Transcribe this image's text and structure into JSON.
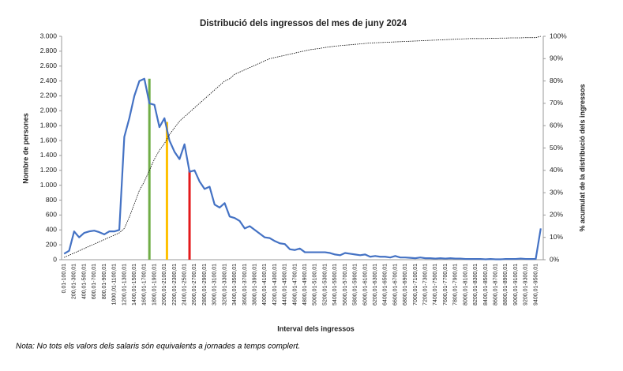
{
  "chart_data": {
    "type": "line",
    "title": "Distribució dels ingressos del mes de juny 2024",
    "x_label": "Interval dels ingressos",
    "y_label": "Nombre de persones",
    "y2_label": "% acumulat de la distribució dels ingressos",
    "note": "Nota: No tots els valors dels salaris són equivalents a jornades a temps complert.",
    "categories": [
      "0,01-100,01",
      null,
      "200,01-300,01",
      null,
      "400,01-500,01",
      null,
      "600,01-700,01",
      null,
      "800,01-900,01",
      null,
      "1000,01-1100,01",
      null,
      "1200,01-1300,01",
      null,
      "1400,01-1500,01",
      null,
      "1600,01-1700,01",
      null,
      "1800,01-1900,01",
      null,
      "2000,01-2100,01",
      null,
      "2200,01-2300,01",
      null,
      "2400,01-2500,01",
      null,
      "2600,01-2700,01",
      null,
      "2800,01-2900,01",
      null,
      "3000,01-3100,01",
      null,
      "3200,01-3300,01",
      null,
      "3400,01-3500,01",
      null,
      "3600,01-3700,01",
      null,
      "3800,01-3900,01",
      null,
      "4000,01-4100,01",
      null,
      "4200,01-4300,01",
      null,
      "4400,01-4500,01",
      null,
      "4600,01-4700,01",
      null,
      "4800,01-4900,01",
      null,
      "5000,01-5100,01",
      null,
      "5200,01-5300,01",
      null,
      "5400,01-5500,01",
      null,
      "5600,01-5700,01",
      null,
      "5800,01-5900,01",
      null,
      "6000,01-6100,01",
      null,
      "6200,01-6300,01",
      null,
      "6400,01-6500,01",
      null,
      "6600,01-6700,01",
      null,
      "6800,01-6900,01",
      null,
      "7000,01-7100,01",
      null,
      "7200,01-7300,01",
      null,
      "7400,01-7500,01",
      null,
      "7600,01-7700,01",
      null,
      "7800,01-7900,01",
      null,
      "8000,01-8100,01",
      null,
      "8200,01-8300,01",
      null,
      "8400,01-8500,01",
      null,
      "8600,01-8700,01",
      null,
      "8800,01-8900,01",
      null,
      "9000,01-9100,01",
      null,
      "9200,01-9300,01",
      null,
      "9400,01-9500,01",
      null
    ],
    "series": [
      {
        "color": "#4472c4",
        "values": [
          80,
          120,
          380,
          300,
          360,
          380,
          390,
          370,
          340,
          380,
          380,
          400,
          1650,
          1900,
          2200,
          2400,
          2430,
          2100,
          2080,
          1780,
          1900,
          1600,
          1450,
          1350,
          1550,
          1180,
          1200,
          1050,
          950,
          980,
          740,
          700,
          760,
          580,
          560,
          520,
          420,
          450,
          400,
          350,
          300,
          290,
          250,
          220,
          210,
          140,
          130,
          150,
          100,
          100,
          100,
          100,
          100,
          90,
          70,
          60,
          90,
          80,
          70,
          60,
          70,
          40,
          50,
          40,
          40,
          30,
          50,
          30,
          30,
          25,
          20,
          30,
          20,
          20,
          15,
          20,
          15,
          20,
          15,
          15,
          10,
          10,
          10,
          10,
          5,
          10,
          5,
          5,
          10,
          10,
          10,
          15,
          10,
          10,
          10,
          420
        ]
      },
      {
        "color": "#000000",
        "axis": "y2",
        "values": [
          1,
          2,
          3,
          4,
          5,
          6,
          7,
          8,
          9,
          10,
          11,
          12,
          14,
          19,
          25,
          31,
          35,
          40,
          45,
          49,
          52,
          56,
          59,
          62,
          64,
          66,
          68,
          70,
          72,
          74,
          76,
          78,
          80,
          81,
          83,
          84,
          85,
          86,
          87,
          88,
          89,
          90,
          90.5,
          91,
          91.5,
          92,
          92.5,
          93,
          93.5,
          94,
          94.3,
          94.6,
          95,
          95.3,
          95.6,
          95.8,
          96,
          96.2,
          96.4,
          96.6,
          96.8,
          97,
          97.1,
          97.2,
          97.3,
          97.4,
          97.5,
          97.6,
          97.7,
          97.8,
          97.9,
          98,
          98.1,
          98.2,
          98.3,
          98.4,
          98.5,
          98.6,
          98.7,
          98.8,
          98.9,
          99,
          99,
          99,
          99,
          99.1,
          99.1,
          99.2,
          99.2,
          99.3,
          99.3,
          99.3,
          99.4,
          99.4,
          99.4,
          100
        ]
      }
    ],
    "reference_lines": [
      {
        "x": 17,
        "value": 2430,
        "color": "#70ad47"
      },
      {
        "x": 20.5,
        "value": 1850,
        "color": "#ffc000"
      },
      {
        "x": 25,
        "value": 1200,
        "color": "#e41a1c"
      }
    ],
    "ylim": [
      0,
      3000
    ],
    "yticks": [
      0,
      200,
      400,
      600,
      800,
      {
        "value": 1000,
        "label": "1.000"
      },
      {
        "value": 1200,
        "label": "1.200"
      },
      {
        "value": 1400,
        "label": "1.400"
      },
      {
        "value": 1600,
        "label": "1.600"
      },
      {
        "value": 1800,
        "label": "1.800"
      },
      {
        "value": 2000,
        "label": "2.000"
      },
      {
        "value": 2200,
        "label": "2.200"
      },
      {
        "value": 2400,
        "label": "2.400"
      },
      {
        "value": 2600,
        "label": "2.600"
      },
      {
        "value": 2800,
        "label": "2.800"
      },
      {
        "value": 3000,
        "label": "3.000"
      }
    ],
    "y2lim": [
      0,
      100
    ],
    "y2ticks": [
      {
        "value": 0,
        "label": "0%"
      },
      {
        "value": 10,
        "label": "10%"
      },
      {
        "value": 20,
        "label": "20%"
      },
      {
        "value": 30,
        "label": "30%"
      },
      {
        "value": 40,
        "label": "40%"
      },
      {
        "value": 50,
        "label": "50%"
      },
      {
        "value": 60,
        "label": "60%"
      },
      {
        "value": 70,
        "label": "70%"
      },
      {
        "value": 80,
        "label": "80%"
      },
      {
        "value": 90,
        "label": "90%"
      },
      {
        "value": 100,
        "label": "100%"
      }
    ]
  }
}
